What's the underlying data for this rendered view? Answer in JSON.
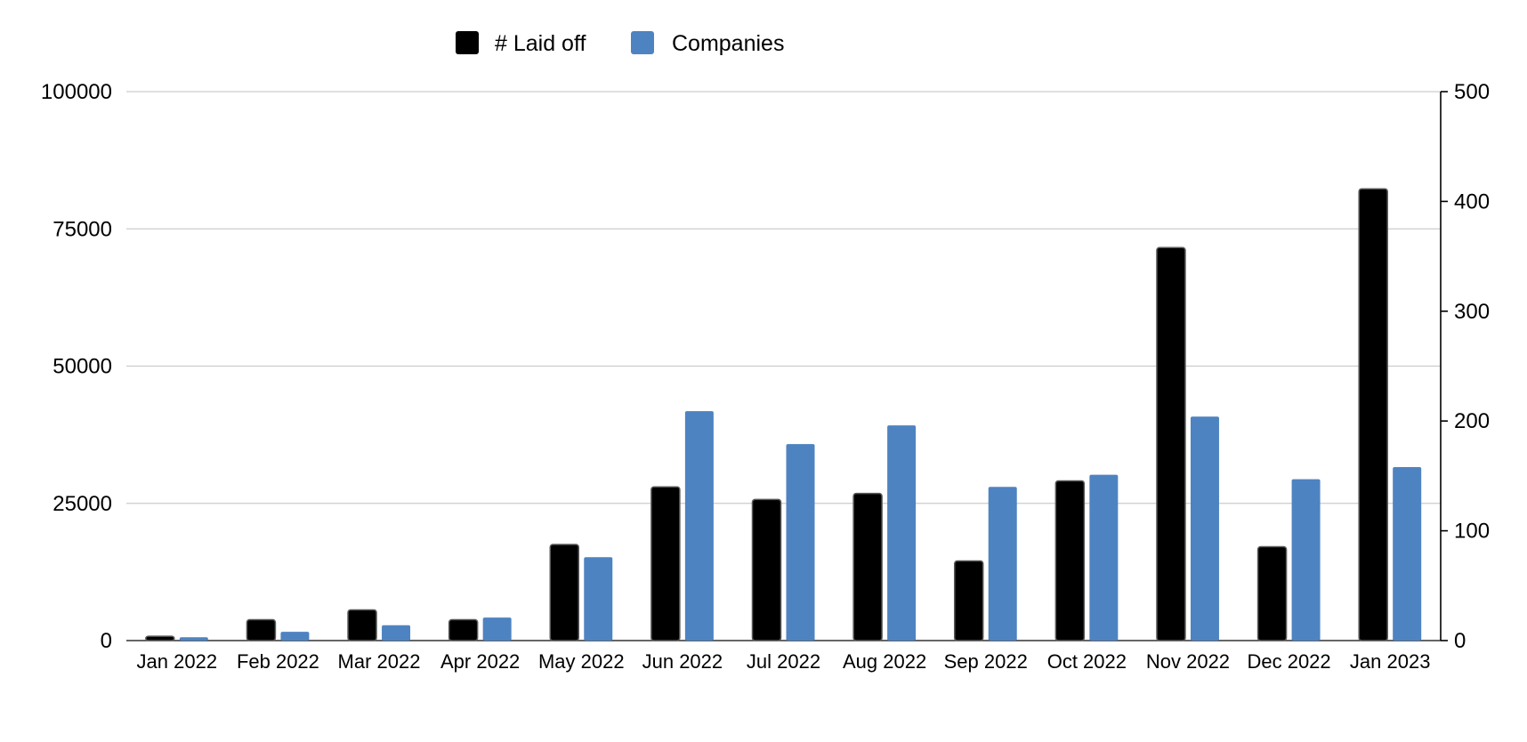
{
  "chart_data": {
    "type": "bar",
    "categories": [
      "Jan 2022",
      "Feb 2022",
      "Mar 2022",
      "Apr 2022",
      "May 2022",
      "Jun 2022",
      "Jul 2022",
      "Aug 2022",
      "Sep 2022",
      "Oct 2022",
      "Nov 2022",
      "Dec 2022",
      "Jan 2023"
    ],
    "series": [
      {
        "name": "# Laid off",
        "axis": "left",
        "color": "#000000",
        "values": [
          800,
          3800,
          5600,
          3800,
          17500,
          28000,
          25700,
          26800,
          14500,
          29100,
          71600,
          17100,
          82300
        ]
      },
      {
        "name": "Companies",
        "axis": "right",
        "color": "#4E83C1",
        "values": [
          3,
          8,
          14,
          21,
          76,
          209,
          179,
          196,
          140,
          151,
          204,
          147,
          158
        ]
      }
    ],
    "y_left": {
      "ticks": [
        "0",
        "25000",
        "50000",
        "75000",
        "100000"
      ],
      "min": 0,
      "max": 100000
    },
    "y_right": {
      "ticks": [
        "0",
        "100",
        "200",
        "300",
        "400",
        "500"
      ],
      "min": 0,
      "max": 500
    },
    "legend_position": "top-center",
    "grid": true,
    "title": "",
    "xlabel": "",
    "ylabel": ""
  }
}
